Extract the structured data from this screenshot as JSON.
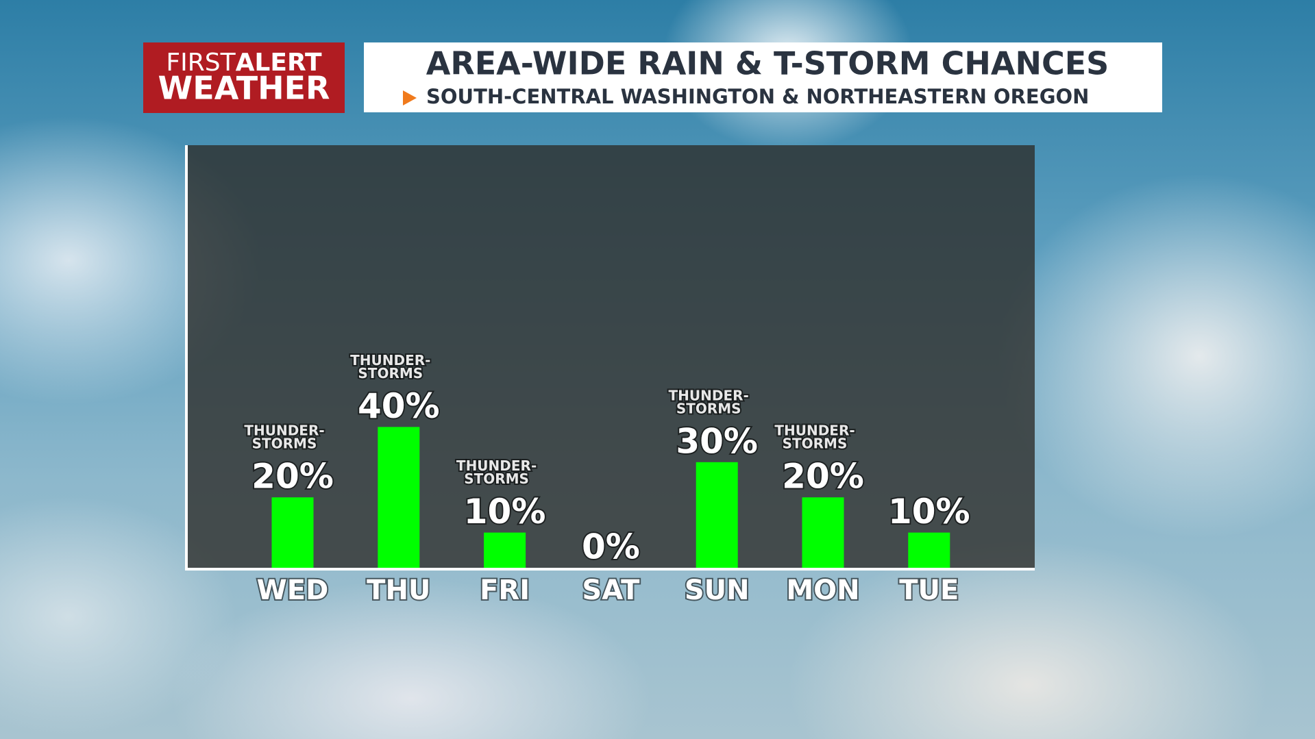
{
  "logo": {
    "first": "FIRST",
    "alert": "ALERT",
    "weather": "WEATHER"
  },
  "chart_data": {
    "type": "bar",
    "title": "AREA-WIDE RAIN & T-STORM CHANCES",
    "subtitle": "SOUTH-CENTRAL WASHINGTON & NORTHEASTERN OREGON",
    "categories": [
      "WED",
      "THU",
      "FRI",
      "SAT",
      "SUN",
      "MON",
      "TUE"
    ],
    "values": [
      20,
      40,
      10,
      0,
      30,
      20,
      10
    ],
    "value_labels": [
      "20%",
      "40%",
      "10%",
      "0%",
      "30%",
      "20%",
      "10%"
    ],
    "notes": [
      [
        "THUNDER-",
        "STORMS"
      ],
      [
        "THUNDER-",
        "STORMS"
      ],
      [
        "THUNDER-",
        "STORMS"
      ],
      null,
      [
        "THUNDER-",
        "STORMS"
      ],
      [
        "THUNDER-",
        "STORMS"
      ],
      null
    ],
    "color": "#00ff00"
  }
}
